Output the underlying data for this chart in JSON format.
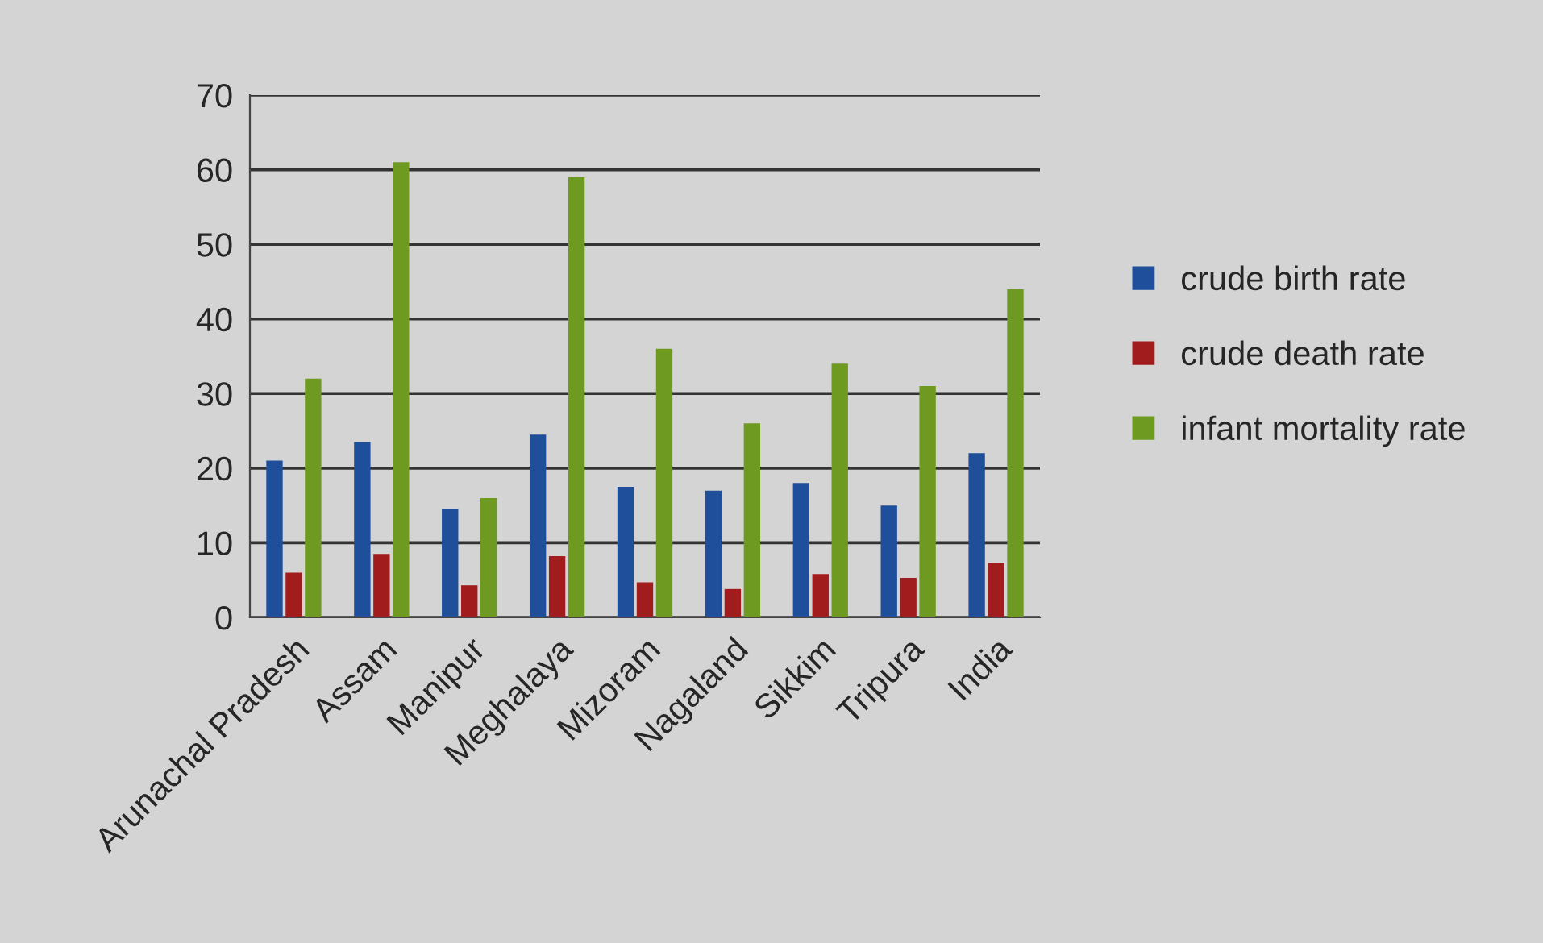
{
  "chart_data": {
    "type": "bar",
    "categories": [
      "Arunachal Pradesh",
      "Assam",
      "Manipur",
      "Meghalaya",
      "Mizoram",
      "Nagaland",
      "Sikkim",
      "Tripura",
      "India"
    ],
    "series": [
      {
        "name": "crude birth rate",
        "color": "#1f4e9a",
        "values": [
          21,
          23.5,
          14.5,
          24.5,
          17.5,
          17,
          18,
          15,
          22
        ]
      },
      {
        "name": "crude death rate",
        "color": "#a11d1d",
        "values": [
          6,
          8.5,
          4.3,
          8.2,
          4.7,
          3.8,
          5.8,
          5.3,
          7.3
        ]
      },
      {
        "name": "infant mortality rate",
        "color": "#6e9a22",
        "values": [
          32,
          61,
          16,
          59,
          36,
          26,
          34,
          31,
          44
        ]
      }
    ],
    "ylim": [
      0,
      70
    ],
    "yticks": [
      0,
      10,
      20,
      30,
      40,
      50,
      60,
      70
    ],
    "grid": "y",
    "legend": "right"
  }
}
